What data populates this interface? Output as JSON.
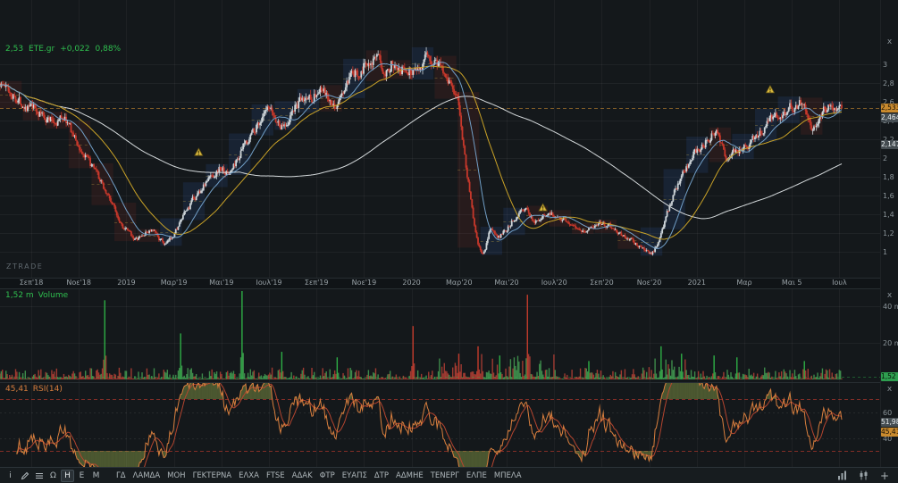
{
  "quote": {
    "price": "2,53",
    "symbol": "ETE.gr",
    "change": "+0,022",
    "change_pct": "0,88%"
  },
  "watermark": "ZTRADE",
  "panels": {
    "price": {
      "close_label": "x"
    },
    "volume": {
      "value": "1,52 m",
      "name": "Volume",
      "close_label": "x",
      "ticks": [
        {
          "label": "40 m",
          "value": 40
        },
        {
          "label": "20 m",
          "value": 20
        }
      ],
      "badge": {
        "label": "1,52 m",
        "value": 1.52,
        "name": "volume-last-badge"
      }
    },
    "rsi": {
      "value": "45,41",
      "name": "RSI(14)",
      "close_label": "x",
      "ticks": [
        {
          "label": "60",
          "value": 60
        },
        {
          "label": "40",
          "value": 40
        }
      ],
      "badges": [
        {
          "label": "51,98",
          "value": 51.98,
          "accent": false,
          "name": "rsi-signal-badge"
        },
        {
          "label": "45,41",
          "value": 45.41,
          "accent": true,
          "name": "rsi-value-badge"
        }
      ]
    }
  },
  "price_axis": {
    "ticks": [
      {
        "label": "3",
        "value": 3.0
      },
      {
        "label": "2,8",
        "value": 2.8
      },
      {
        "label": "2,6",
        "value": 2.6
      },
      {
        "label": "2,4",
        "value": 2.4
      },
      {
        "label": "2,2",
        "value": 2.2
      },
      {
        "label": "2",
        "value": 2.0
      },
      {
        "label": "1,8",
        "value": 1.8
      },
      {
        "label": "1,6",
        "value": 1.6
      },
      {
        "label": "1,4",
        "value": 1.4
      },
      {
        "label": "1,2",
        "value": 1.2
      },
      {
        "label": "1",
        "value": 1.0
      }
    ],
    "badges": [
      {
        "label": "2,533",
        "value": 2.533,
        "accent": true,
        "name": "last-price-badge"
      },
      {
        "label": "2,464",
        "value": 2.464,
        "accent": false,
        "name": "ma-fast-badge"
      },
      {
        "label": "2,147",
        "value": 2.147,
        "accent": false,
        "name": "ma-slow-badge"
      }
    ]
  },
  "x_axis": {
    "labels": [
      "Σεπ'18",
      "Νοε'18",
      "2019",
      "Μαρ'19",
      "Μαι'19",
      "Ιουλ'19",
      "Σεπ'19",
      "Νοε'19",
      "2020",
      "Μαρ'20",
      "Μαι'20",
      "Ιουλ'20",
      "Σεπ'20",
      "Νοε'20",
      "2021",
      "Μαρ",
      "Μαι 5",
      "Ιουλ"
    ]
  },
  "toolbar": {
    "info_label": "i",
    "omega_label": "Ω",
    "timeframes": [
      {
        "label": "Η",
        "selected": true
      },
      {
        "label": "Ε",
        "selected": false
      },
      {
        "label": "Μ",
        "selected": false
      }
    ],
    "tickers": [
      "ΓΔ",
      "ΛΑΜΔΑ",
      "ΜΟΗ",
      "ΓΕΚΤΕΡΝΑ",
      "ΕΛΧΑ",
      "FTSE",
      "ΑΔΑΚ",
      "ΦΤΡ",
      "ΕΥΑΠΣ",
      "ΔΤΡ",
      "ΑΔΜΗΕ",
      "ΤΕΝΕΡΓ",
      "ΕΛΠΕ",
      "ΜΠΕΛΑ"
    ],
    "add_label": "+"
  },
  "colors": {
    "up": "#ced5d9",
    "down": "#c8382b",
    "vol_up": "#3d8a4a",
    "vol_down": "#9e3a31",
    "vol_up_bright": "#2eae46",
    "vol_down_bright": "#c23b2c",
    "ma_fast": "#72a0c8",
    "ma_mid": "#c9a227",
    "ma_slow": "#d4d9db",
    "rsi": "#d97f3e",
    "rsi_signal": "#b5452f",
    "accent": "#c98a2e",
    "green": "#2fbf4f"
  },
  "chart_data": [
    {
      "type": "candlestick",
      "symbol": "ETE.gr",
      "timeframe": "daily",
      "title": "2,53 ETE.gr +0,022 0,88%",
      "last_value": 2.53,
      "change": 0.022,
      "change_pct": 0.88,
      "ylim": [
        0.8,
        3.7
      ],
      "y_ticks": [
        3.0,
        2.8,
        2.6,
        2.4,
        2.2,
        2.0,
        1.8,
        1.6,
        1.4,
        1.2,
        1.0
      ],
      "x_tick_labels": [
        "Σεπ'18",
        "Νοε'18",
        "2019",
        "Μαρ'19",
        "Μαι'19",
        "Ιουλ'19",
        "Σεπ'19",
        "Νοε'19",
        "2020",
        "Μαρ'20",
        "Μαι'20",
        "Ιουλ'20",
        "Σεπ'20",
        "Νοε'20",
        "2021",
        "Μαρ",
        "Μαι 5",
        "Ιουλ"
      ],
      "candle_count": 700,
      "seed": 1337,
      "zone_bars": 19,
      "price_anchors": [
        [
          0.0,
          2.8
        ],
        [
          0.021,
          2.62
        ],
        [
          0.037,
          2.52
        ],
        [
          0.064,
          2.38
        ],
        [
          0.075,
          2.45
        ],
        [
          0.093,
          2.1
        ],
        [
          0.111,
          1.85
        ],
        [
          0.13,
          1.55
        ],
        [
          0.146,
          1.25
        ],
        [
          0.161,
          1.12
        ],
        [
          0.178,
          1.24
        ],
        [
          0.196,
          1.06
        ],
        [
          0.212,
          1.3
        ],
        [
          0.228,
          1.55
        ],
        [
          0.244,
          1.75
        ],
        [
          0.26,
          1.9
        ],
        [
          0.271,
          1.82
        ],
        [
          0.287,
          2.1
        ],
        [
          0.303,
          2.35
        ],
        [
          0.318,
          2.5
        ],
        [
          0.334,
          2.32
        ],
        [
          0.35,
          2.55
        ],
        [
          0.366,
          2.65
        ],
        [
          0.382,
          2.72
        ],
        [
          0.395,
          2.5
        ],
        [
          0.412,
          2.8
        ],
        [
          0.428,
          2.95
        ],
        [
          0.44,
          3.1
        ],
        [
          0.454,
          2.95
        ],
        [
          0.469,
          3.05
        ],
        [
          0.483,
          2.9
        ],
        [
          0.499,
          3.02
        ],
        [
          0.517,
          3.05
        ],
        [
          0.531,
          2.88
        ],
        [
          0.543,
          2.6
        ],
        [
          0.554,
          1.8
        ],
        [
          0.565,
          1.1
        ],
        [
          0.573,
          0.92
        ],
        [
          0.582,
          1.3
        ],
        [
          0.59,
          1.12
        ],
        [
          0.603,
          1.28
        ],
        [
          0.619,
          1.48
        ],
        [
          0.635,
          1.32
        ],
        [
          0.65,
          1.42
        ],
        [
          0.663,
          1.38
        ],
        [
          0.679,
          1.3
        ],
        [
          0.695,
          1.22
        ],
        [
          0.711,
          1.32
        ],
        [
          0.727,
          1.25
        ],
        [
          0.743,
          1.15
        ],
        [
          0.759,
          1.06
        ],
        [
          0.773,
          0.97
        ],
        [
          0.783,
          1.15
        ],
        [
          0.796,
          1.55
        ],
        [
          0.809,
          1.8
        ],
        [
          0.823,
          2.05
        ],
        [
          0.839,
          2.2
        ],
        [
          0.849,
          2.32
        ],
        [
          0.862,
          2.0
        ],
        [
          0.876,
          2.1
        ],
        [
          0.892,
          2.18
        ],
        [
          0.908,
          2.35
        ],
        [
          0.923,
          2.48
        ],
        [
          0.939,
          2.55
        ],
        [
          0.953,
          2.62
        ],
        [
          0.964,
          2.3
        ],
        [
          0.974,
          2.5
        ],
        [
          0.987,
          2.58
        ],
        [
          1.0,
          2.53
        ]
      ],
      "moving_averages": [
        {
          "period": 200,
          "color_key": "ma_slow"
        },
        {
          "period": 50,
          "color_key": "ma_mid"
        },
        {
          "period": 20,
          "color_key": "ma_fast"
        }
      ],
      "markers": [
        {
          "f": 0.236,
          "price": 2.06
        },
        {
          "f": 0.645,
          "price": 1.47
        },
        {
          "f": 0.915,
          "price": 2.73
        }
      ],
      "axis_badge_values": [
        2.533,
        2.464,
        2.147
      ]
    },
    {
      "type": "bar",
      "name": "Volume",
      "unit": "m",
      "last_value": 1.52,
      "ylim": [
        0,
        49
      ],
      "y_ticks": [
        40,
        20
      ],
      "base_max": 6,
      "regions": [
        {
          "f0": 0.52,
          "f1": 0.66,
          "mult": 2.2
        },
        {
          "f0": 0.77,
          "f1": 0.83,
          "mult": 1.8
        }
      ],
      "spikes": [
        {
          "f": 0.125,
          "v": 43,
          "dir": "up"
        },
        {
          "f": 0.214,
          "v": 25,
          "dir": "up"
        },
        {
          "f": 0.288,
          "v": 48,
          "dir": "up"
        },
        {
          "f": 0.335,
          "v": 15,
          "dir": "up"
        },
        {
          "f": 0.4,
          "v": 12,
          "dir": "up"
        },
        {
          "f": 0.49,
          "v": 29,
          "dir": "down"
        },
        {
          "f": 0.545,
          "v": 14,
          "dir": "down"
        },
        {
          "f": 0.568,
          "v": 18,
          "dir": "down"
        },
        {
          "f": 0.594,
          "v": 13,
          "dir": "up"
        },
        {
          "f": 0.626,
          "v": 46,
          "dir": "down"
        },
        {
          "f": 0.7,
          "v": 10,
          "dir": "up"
        },
        {
          "f": 0.785,
          "v": 18,
          "dir": "up"
        },
        {
          "f": 0.81,
          "v": 14,
          "dir": "up"
        },
        {
          "f": 0.849,
          "v": 13,
          "dir": "up"
        },
        {
          "f": 0.876,
          "v": 12,
          "dir": "up"
        },
        {
          "f": 0.955,
          "v": 10,
          "dir": "up"
        }
      ]
    },
    {
      "type": "line",
      "name": "RSI(14)",
      "period": 14,
      "signal_period": 9,
      "last_value": 45.41,
      "signal_value": 51.98,
      "levels": {
        "overbought": 70,
        "oversold": 30
      },
      "y_ticks": [
        60,
        40
      ],
      "ylim": [
        18,
        80
      ]
    }
  ]
}
